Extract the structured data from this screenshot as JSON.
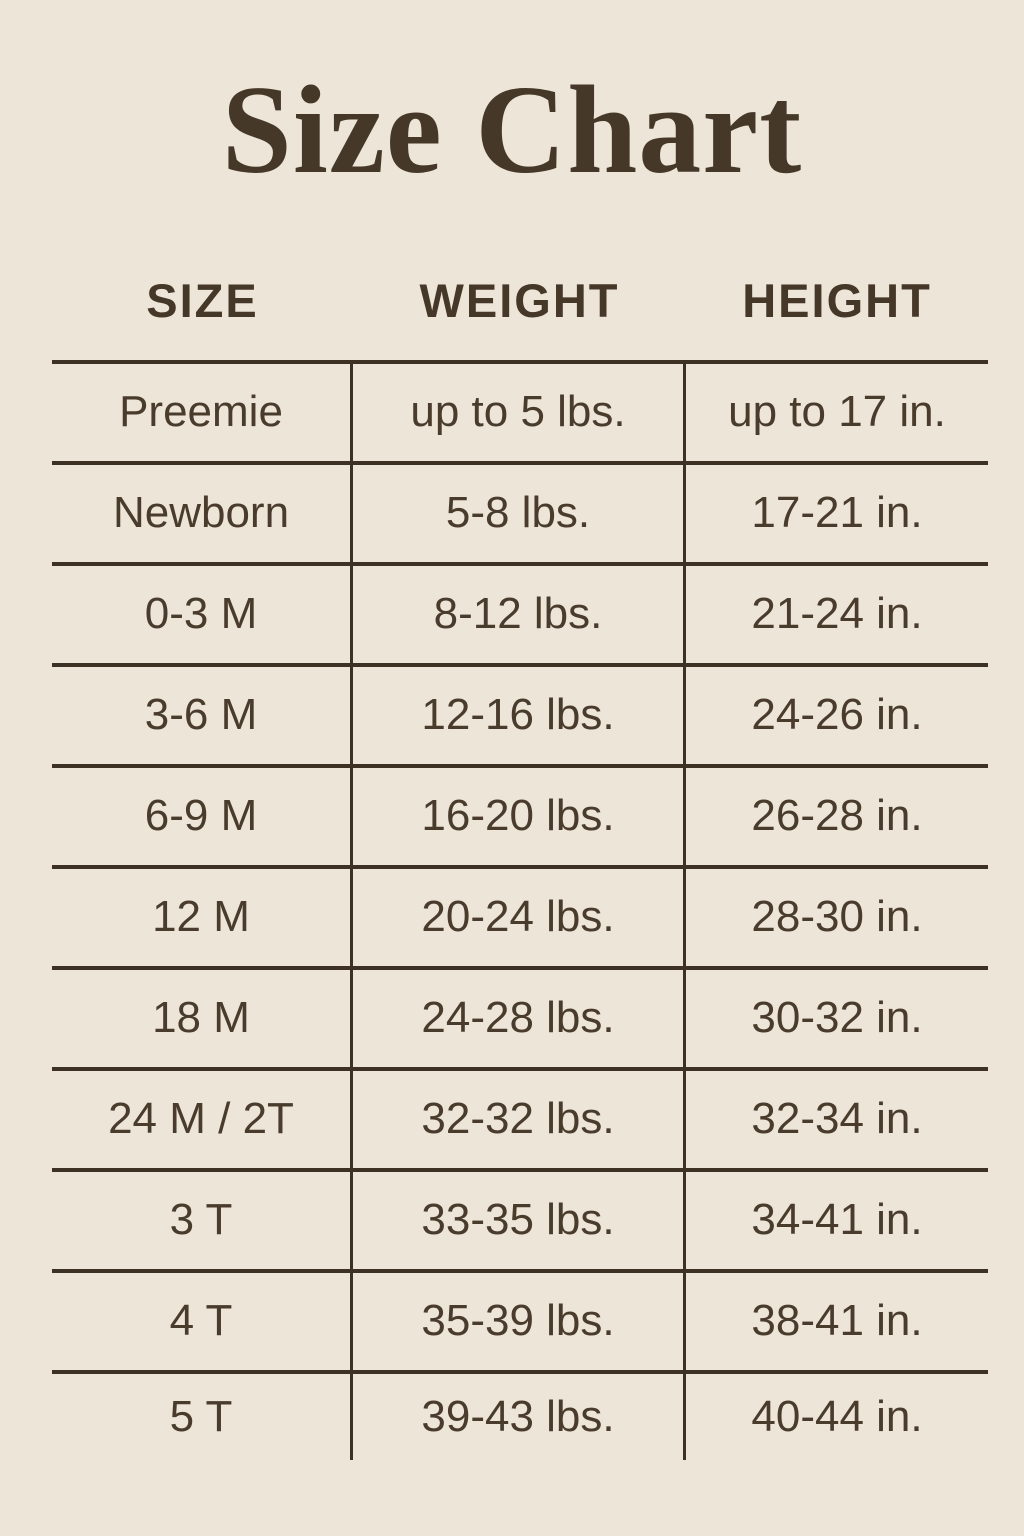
{
  "chart_data": {
    "type": "table",
    "title": "Size Chart",
    "columns": [
      "SIZE",
      "WEIGHT",
      "HEIGHT"
    ],
    "rows": [
      [
        "Preemie",
        "up to 5 lbs.",
        "up to 17 in."
      ],
      [
        "Newborn",
        "5-8 lbs.",
        "17-21 in."
      ],
      [
        "0-3 M",
        "8-12 lbs.",
        "21-24 in."
      ],
      [
        "3-6 M",
        "12-16 lbs.",
        "24-26 in."
      ],
      [
        "6-9 M",
        "16-20 lbs.",
        "26-28 in."
      ],
      [
        "12 M",
        "20-24 lbs.",
        "28-30 in."
      ],
      [
        "18 M",
        "24-28 lbs.",
        "30-32 in."
      ],
      [
        "24 M / 2T",
        "32-32 lbs.",
        "32-34 in."
      ],
      [
        "3 T",
        "33-35 lbs.",
        "34-41 in."
      ],
      [
        "4 T",
        "35-39 lbs.",
        "38-41 in."
      ],
      [
        "5 T",
        "39-43 lbs.",
        "40-44 in."
      ]
    ]
  },
  "colors": {
    "background": "#EDE5D8",
    "title_text": "#463829",
    "body_text": "#4A3C2D",
    "rule_line": "#3D3124"
  }
}
